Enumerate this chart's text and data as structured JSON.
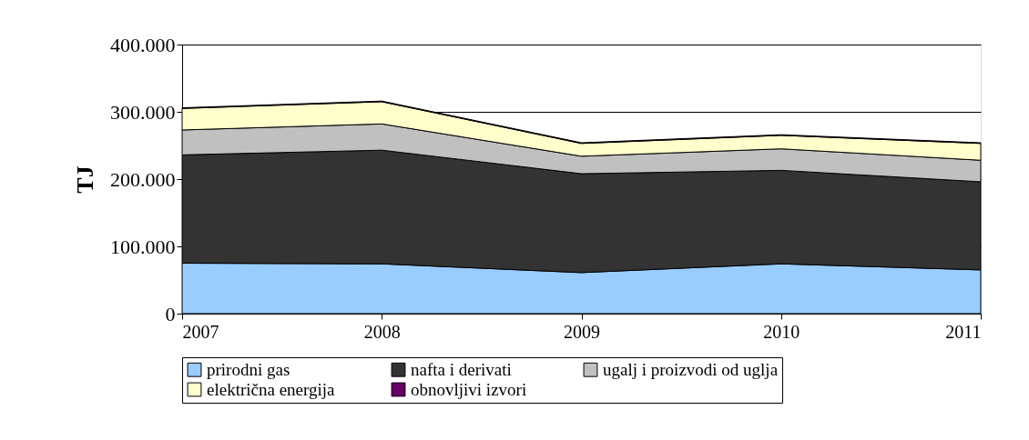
{
  "chart_data": {
    "type": "area",
    "stacked": true,
    "ylabel": "TJ",
    "x": [
      2007,
      2008,
      2009,
      2010,
      2011
    ],
    "xlim": [
      2007,
      2011
    ],
    "xticks": [
      2007,
      2008,
      2009,
      2010,
      2011
    ],
    "ylim": [
      0,
      400000
    ],
    "yticks": [
      0,
      {
        "value": 100000,
        "label": "100.000"
      },
      {
        "value": 200000,
        "label": "200.000"
      },
      {
        "value": 300000,
        "label": "300.000"
      },
      {
        "value": 400000,
        "label": "400.000"
      }
    ],
    "grid": "y",
    "legend": "bottom",
    "series": [
      {
        "name": "prirodni gas",
        "color": "#99ccff",
        "values": [
          75000,
          74000,
          61000,
          74000,
          65000
        ]
      },
      {
        "name": "nafta i derivati",
        "color": "#333333",
        "values": [
          161000,
          169000,
          147000,
          139000,
          131000
        ]
      },
      {
        "name": "ugalj i proizvodi od uglja",
        "color": "#c0c0c0",
        "values": [
          37000,
          39000,
          26000,
          32000,
          32000
        ]
      },
      {
        "name": "električna energija",
        "color": "#ffffcc",
        "values": [
          32000,
          33000,
          19000,
          20000,
          25000
        ]
      },
      {
        "name": "obnovljivi izvori",
        "color": "#660066",
        "values": [
          1000,
          1000,
          1000,
          1000,
          1000
        ]
      }
    ]
  }
}
